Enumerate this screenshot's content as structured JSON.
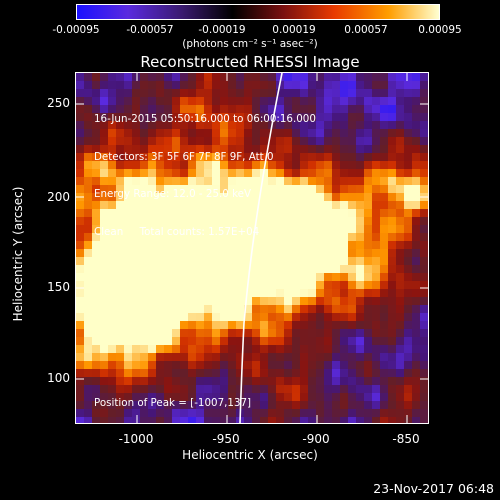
{
  "colorbar": {
    "ticks": [
      "-0.00095",
      "-0.00057",
      "-0.00019",
      "0.00019",
      "0.00057",
      "0.00095"
    ],
    "unit_label": "(photons cm⁻² s⁻¹ asec⁻²)",
    "colors": [
      "#1a10ff",
      "#5a2adf",
      "#3a1a70",
      "#000000",
      "#7a1010",
      "#e83a00",
      "#ff9d00",
      "#ffffd0"
    ]
  },
  "plot": {
    "title": "Reconstructed RHESSI Image",
    "info_lines": [
      "16-Jun-2015 05:50:16.000 to 06:00:16.000",
      "Detectors: 3F 5F 6F 7F 8F 9F, Att 0",
      "Energy Range: 12.0 - 25.0 keV",
      "Clean     Total counts: 1.57E+04"
    ],
    "peak_text": "Position of Peak = [-1007,137]",
    "x_axis": {
      "title": "Heliocentric X (arcsec)",
      "range": [
        -1033,
        -833
      ],
      "ticks": [
        "-1000",
        "-950",
        "-900",
        "-850"
      ],
      "tick_values": [
        -1000,
        -950,
        -900,
        -850
      ]
    },
    "y_axis": {
      "title": "Heliocentric Y (arcsec)",
      "range": [
        75,
        270
      ],
      "ticks": [
        "100",
        "150",
        "200",
        "250"
      ],
      "tick_values": [
        100,
        150,
        200,
        250
      ]
    },
    "limb_color": "#ffffff"
  },
  "footer": {
    "timestamp": "23-Nov-2017 06:48"
  }
}
